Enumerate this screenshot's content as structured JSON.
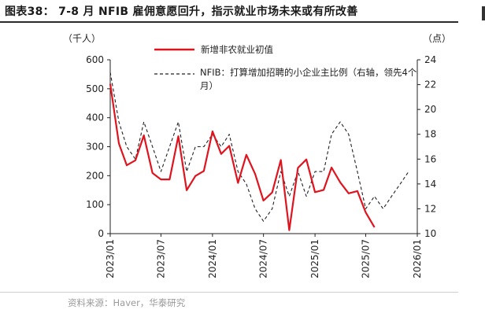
{
  "title": "图表38：  7-8 月 NFIB 雇佣意愿回升，指示就业市场未来或有所改善",
  "source": "资料来源：Haver，华泰研究",
  "chart_data": {
    "type": "line",
    "left_axis": {
      "unit": "（千人）",
      "ylim": [
        0,
        600
      ],
      "ticks": [
        0,
        100,
        200,
        300,
        400,
        500,
        600
      ]
    },
    "right_axis": {
      "unit": "（点）",
      "ylim": [
        10,
        24
      ],
      "ticks": [
        10,
        12,
        14,
        16,
        18,
        20,
        22,
        24
      ]
    },
    "x_ticks": [
      "2023/01",
      "2023/07",
      "2024/01",
      "2024/07",
      "2025/01",
      "2025/07",
      "2026/01"
    ],
    "legend_placement": "top",
    "series": [
      {
        "name": "新增非农就业初值",
        "axis": "left",
        "color": "#e0141e",
        "style": "solid",
        "x": [
          "2023-01",
          "2023-02",
          "2023-03",
          "2023-04",
          "2023-05",
          "2023-06",
          "2023-07",
          "2023-08",
          "2023-09",
          "2023-10",
          "2023-11",
          "2023-12",
          "2024-01",
          "2024-02",
          "2024-03",
          "2024-04",
          "2024-05",
          "2024-06",
          "2024-07",
          "2024-08",
          "2024-09",
          "2024-10",
          "2024-11",
          "2024-12",
          "2025-01",
          "2025-02",
          "2025-03",
          "2025-04",
          "2025-05",
          "2025-06",
          "2025-07",
          "2025-08"
        ],
        "values": [
          517,
          311,
          236,
          253,
          339,
          209,
          187,
          187,
          336,
          150,
          199,
          216,
          353,
          275,
          303,
          175,
          272,
          206,
          114,
          142,
          254,
          12,
          227,
          256,
          143,
          151,
          228,
          177,
          139,
          147,
          73,
          22
        ]
      },
      {
        "name": "NFIB：打算增加招聘的小企业主比例（右轴，领先4个月）",
        "axis": "right",
        "color": "#222222",
        "style": "dashed",
        "x": [
          "2023-01",
          "2023-02",
          "2023-03",
          "2023-04",
          "2023-05",
          "2023-06",
          "2023-07",
          "2023-08",
          "2023-09",
          "2023-10",
          "2023-11",
          "2023-12",
          "2024-01",
          "2024-02",
          "2024-03",
          "2024-04",
          "2024-05",
          "2024-06",
          "2024-07",
          "2024-08",
          "2024-09",
          "2024-10",
          "2024-11",
          "2024-12",
          "2025-01",
          "2025-02",
          "2025-03",
          "2025-04",
          "2025-05",
          "2025-06",
          "2025-07",
          "2025-08",
          "2025-09",
          "2025-10",
          "2025-11",
          "2025-12"
        ],
        "values": [
          23,
          19,
          17,
          16,
          19,
          17,
          15,
          17,
          19,
          15,
          17,
          17,
          18,
          17,
          18,
          15,
          14,
          12,
          11,
          12,
          15,
          13,
          15,
          13,
          15,
          15,
          18,
          19,
          18,
          15,
          12,
          13,
          12,
          13,
          14,
          15
        ]
      }
    ]
  }
}
